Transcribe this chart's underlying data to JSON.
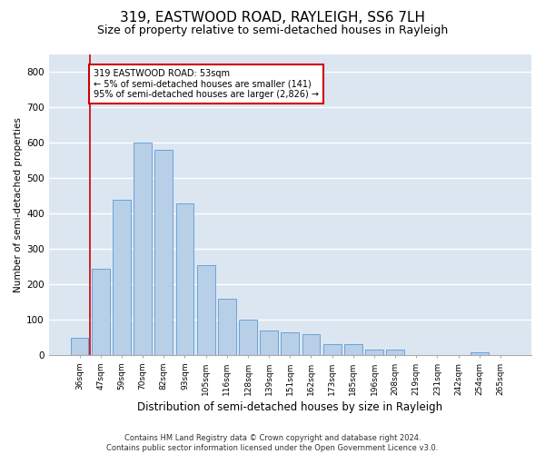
{
  "title": "319, EASTWOOD ROAD, RAYLEIGH, SS6 7LH",
  "subtitle": "Size of property relative to semi-detached houses in Rayleigh",
  "xlabel": "Distribution of semi-detached houses by size in Rayleigh",
  "ylabel": "Number of semi-detached properties",
  "categories": [
    "36sqm",
    "47sqm",
    "59sqm",
    "70sqm",
    "82sqm",
    "93sqm",
    "105sqm",
    "116sqm",
    "128sqm",
    "139sqm",
    "151sqm",
    "162sqm",
    "173sqm",
    "185sqm",
    "196sqm",
    "208sqm",
    "219sqm",
    "231sqm",
    "242sqm",
    "254sqm",
    "265sqm"
  ],
  "values": [
    50,
    245,
    440,
    600,
    580,
    430,
    255,
    160,
    100,
    70,
    65,
    60,
    30,
    30,
    15,
    15,
    0,
    0,
    0,
    8,
    0
  ],
  "bar_color": "#b8cfe8",
  "bar_edge_color": "#5b9bd5",
  "annotation_title": "319 EASTWOOD ROAD: 53sqm",
  "annotation_line1": "← 5% of semi-detached houses are smaller (141)",
  "annotation_line2": "95% of semi-detached houses are larger (2,826) →",
  "annotation_box_color": "#ffffff",
  "annotation_box_edge_color": "#cc0000",
  "footer1": "Contains HM Land Registry data © Crown copyright and database right 2024.",
  "footer2": "Contains public sector information licensed under the Open Government Licence v3.0.",
  "ylim": [
    0,
    850
  ],
  "yticks": [
    0,
    100,
    200,
    300,
    400,
    500,
    600,
    700,
    800
  ],
  "bg_color": "#dce6f1",
  "grid_color": "#ffffff",
  "title_fontsize": 11,
  "subtitle_fontsize": 9,
  "xlabel_fontsize": 8.5,
  "ylabel_fontsize": 7.5,
  "bar_width": 0.85,
  "property_line_x": 0.5,
  "red_line_color": "#cc0000"
}
